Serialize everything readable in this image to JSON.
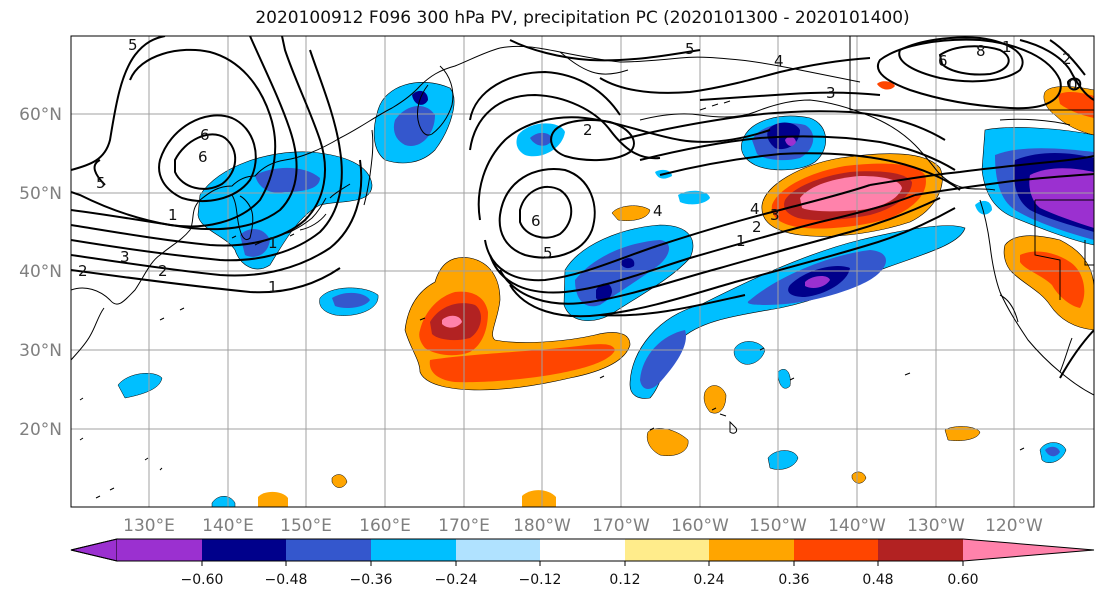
{
  "title": "2020100912 F096 300 hPa PV, precipitation PC (2020101300 - 2020101400)",
  "map": {
    "lat_labels": [
      "60°N",
      "50°N",
      "40°N",
      "30°N",
      "20°N"
    ],
    "lon_labels": [
      "130°E",
      "140°E",
      "150°E",
      "160°E",
      "170°E",
      "180°W",
      "170°W",
      "160°W",
      "150°W",
      "140°W",
      "130°W",
      "120°W"
    ]
  },
  "colorbar": {
    "colors": [
      "#9b30d0",
      "#00008b",
      "#3457cd",
      "#00bfff",
      "#b0e2ff",
      "#ffffff",
      "#ffec8b",
      "#ffa500",
      "#ff4500",
      "#b22222",
      "#ff82ab"
    ],
    "tick_labels": [
      "−0.60",
      "−0.48",
      "−0.36",
      "−0.24",
      "−0.12",
      "0.12",
      "0.24",
      "0.36",
      "0.48",
      "0.60"
    ]
  },
  "contour_labels": {
    "nw_5": "5",
    "w_5": "5",
    "w_6": "6",
    "w_6b": "6",
    "w_1": "1",
    "w_3": "3",
    "w_2": "2",
    "w_1b": "1",
    "w_2b": "2",
    "w_1c": "1",
    "c_5": "5",
    "c_2": "2",
    "c_4": "4",
    "c_3": "3",
    "c_6": "6",
    "c_5b": "5",
    "c_4b": "4",
    "e_4": "4",
    "e_3": "3",
    "e_2": "2",
    "e_1": "1",
    "ne_6": "6",
    "ne_8": "8",
    "ne_1": "1",
    "ne_2": "2",
    "ne_0": "0"
  }
}
